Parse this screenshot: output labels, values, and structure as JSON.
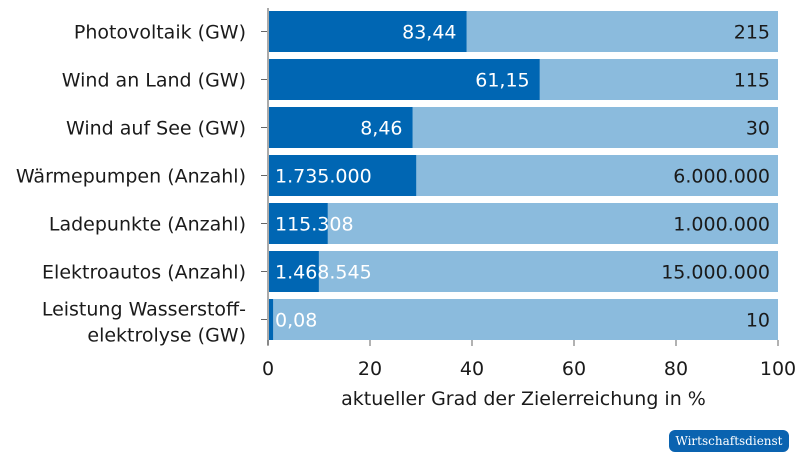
{
  "chart_data": {
    "type": "bar",
    "orientation": "horizontal-stacked",
    "categories": [
      [
        "Photovoltaik (GW)"
      ],
      [
        "Wind an Land (GW)"
      ],
      [
        "Wind auf See (GW)"
      ],
      [
        "Wärmepumpen (Anzahl)"
      ],
      [
        "Ladepunkte (Anzahl)"
      ],
      [
        "Elektroautos (Anzahl)"
      ],
      [
        "Leistung Wasserstoff-",
        "elektrolyse (GW)"
      ]
    ],
    "current_labels": [
      "83,44",
      "61,15",
      "8,46",
      "1.735.000",
      "115.308",
      "1.468.545",
      "0,08"
    ],
    "target_labels": [
      "215",
      "115",
      "30",
      "6.000.000",
      "1.000.000",
      "15.000.000",
      "10"
    ],
    "current": [
      83.44,
      61.15,
      8.46,
      1735000,
      115308,
      1468545,
      0.08
    ],
    "target": [
      215,
      115,
      30,
      6000000,
      1000000,
      15000000,
      10
    ],
    "xlabel": "aktueller Grad der Zielerreichung in %",
    "xlim": [
      0,
      100
    ],
    "xticks": [
      "0",
      "20",
      "40",
      "60",
      "80",
      "100"
    ],
    "colors": {
      "current": "#0066b3",
      "target": "#8bbbdd"
    }
  },
  "source_logo": "Wirtschaftsdienst"
}
